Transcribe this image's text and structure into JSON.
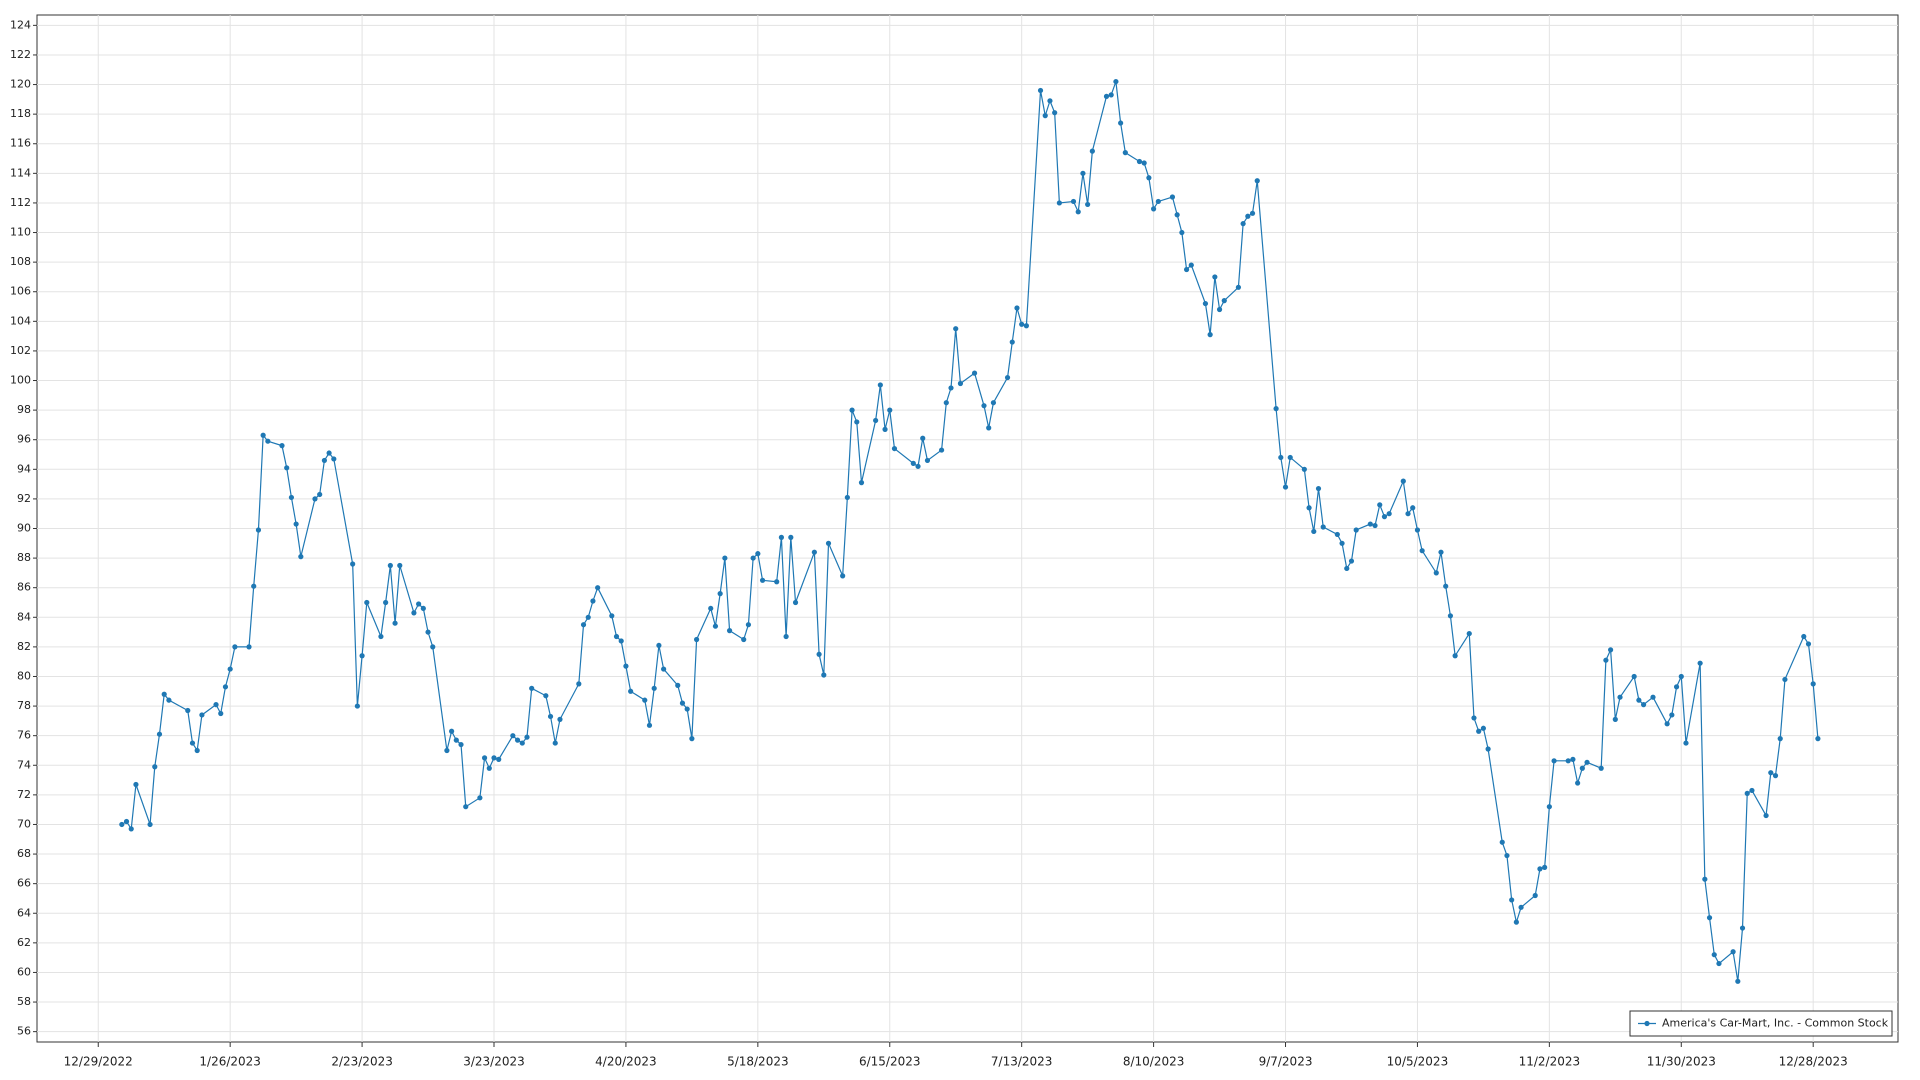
{
  "chart_data": {
    "type": "line",
    "x": [
      "1/3/2023",
      "1/4/2023",
      "1/5/2023",
      "1/6/2023",
      "1/9/2023",
      "1/10/2023",
      "1/11/2023",
      "1/12/2023",
      "1/13/2023",
      "1/17/2023",
      "1/18/2023",
      "1/19/2023",
      "1/20/2023",
      "1/23/2023",
      "1/24/2023",
      "1/25/2023",
      "1/26/2023",
      "1/27/2023",
      "1/30/2023",
      "1/31/2023",
      "2/1/2023",
      "2/2/2023",
      "2/3/2023",
      "2/6/2023",
      "2/7/2023",
      "2/8/2023",
      "2/9/2023",
      "2/10/2023",
      "2/13/2023",
      "2/14/2023",
      "2/15/2023",
      "2/16/2023",
      "2/17/2023",
      "2/21/2023",
      "2/22/2023",
      "2/23/2023",
      "2/24/2023",
      "2/27/2023",
      "2/28/2023",
      "3/1/2023",
      "3/2/2023",
      "3/3/2023",
      "3/6/2023",
      "3/7/2023",
      "3/8/2023",
      "3/9/2023",
      "3/10/2023",
      "3/13/2023",
      "3/14/2023",
      "3/15/2023",
      "3/16/2023",
      "3/17/2023",
      "3/20/2023",
      "3/21/2023",
      "3/22/2023",
      "3/23/2023",
      "3/24/2023",
      "3/27/2023",
      "3/28/2023",
      "3/29/2023",
      "3/30/2023",
      "3/31/2023",
      "4/3/2023",
      "4/4/2023",
      "4/5/2023",
      "4/6/2023",
      "4/10/2023",
      "4/11/2023",
      "4/12/2023",
      "4/13/2023",
      "4/14/2023",
      "4/17/2023",
      "4/18/2023",
      "4/19/2023",
      "4/20/2023",
      "4/21/2023",
      "4/24/2023",
      "4/25/2023",
      "4/26/2023",
      "4/27/2023",
      "4/28/2023",
      "5/1/2023",
      "5/2/2023",
      "5/3/2023",
      "5/4/2023",
      "5/5/2023",
      "5/8/2023",
      "5/9/2023",
      "5/10/2023",
      "5/11/2023",
      "5/12/2023",
      "5/15/2023",
      "5/16/2023",
      "5/17/2023",
      "5/18/2023",
      "5/19/2023",
      "5/22/2023",
      "5/23/2023",
      "5/24/2023",
      "5/25/2023",
      "5/26/2023",
      "5/30/2023",
      "5/31/2023",
      "6/1/2023",
      "6/2/2023",
      "6/5/2023",
      "6/6/2023",
      "6/7/2023",
      "6/8/2023",
      "6/9/2023",
      "6/12/2023",
      "6/13/2023",
      "6/14/2023",
      "6/15/2023",
      "6/16/2023",
      "6/20/2023",
      "6/21/2023",
      "6/22/2023",
      "6/23/2023",
      "6/26/2023",
      "6/27/2023",
      "6/28/2023",
      "6/29/2023",
      "6/30/2023",
      "7/3/2023",
      "7/5/2023",
      "7/6/2023",
      "7/7/2023",
      "7/10/2023",
      "7/11/2023",
      "7/12/2023",
      "7/13/2023",
      "7/14/2023",
      "7/17/2023",
      "7/18/2023",
      "7/19/2023",
      "7/20/2023",
      "7/21/2023",
      "7/24/2023",
      "7/25/2023",
      "7/26/2023",
      "7/27/2023",
      "7/28/2023",
      "7/31/2023",
      "8/1/2023",
      "8/2/2023",
      "8/3/2023",
      "8/4/2023",
      "8/7/2023",
      "8/8/2023",
      "8/9/2023",
      "8/10/2023",
      "8/11/2023",
      "8/14/2023",
      "8/15/2023",
      "8/16/2023",
      "8/17/2023",
      "8/18/2023",
      "8/21/2023",
      "8/22/2023",
      "8/23/2023",
      "8/24/2023",
      "8/25/2023",
      "8/28/2023",
      "8/29/2023",
      "8/30/2023",
      "8/31/2023",
      "9/1/2023",
      "9/5/2023",
      "9/6/2023",
      "9/7/2023",
      "9/8/2023",
      "9/11/2023",
      "9/12/2023",
      "9/13/2023",
      "9/14/2023",
      "9/15/2023",
      "9/18/2023",
      "9/19/2023",
      "9/20/2023",
      "9/21/2023",
      "9/22/2023",
      "9/25/2023",
      "9/26/2023",
      "9/27/2023",
      "9/28/2023",
      "9/29/2023",
      "10/2/2023",
      "10/3/2023",
      "10/4/2023",
      "10/5/2023",
      "10/6/2023",
      "10/9/2023",
      "10/10/2023",
      "10/11/2023",
      "10/12/2023",
      "10/13/2023",
      "10/16/2023",
      "10/17/2023",
      "10/18/2023",
      "10/19/2023",
      "10/20/2023",
      "10/23/2023",
      "10/24/2023",
      "10/25/2023",
      "10/26/2023",
      "10/27/2023",
      "10/30/2023",
      "10/31/2023",
      "11/1/2023",
      "11/2/2023",
      "11/3/2023",
      "11/6/2023",
      "11/7/2023",
      "11/8/2023",
      "11/9/2023",
      "11/10/2023",
      "11/13/2023",
      "11/14/2023",
      "11/15/2023",
      "11/16/2023",
      "11/17/2023",
      "11/20/2023",
      "11/21/2023",
      "11/22/2023",
      "11/24/2023",
      "11/27/2023",
      "11/28/2023",
      "11/29/2023",
      "11/30/2023",
      "12/1/2023",
      "12/4/2023",
      "12/5/2023",
      "12/6/2023",
      "12/7/2023",
      "12/8/2023",
      "12/11/2023",
      "12/12/2023",
      "12/13/2023",
      "12/14/2023",
      "12/15/2023",
      "12/18/2023",
      "12/19/2023",
      "12/20/2023",
      "12/21/2023",
      "12/22/2023",
      "12/26/2023",
      "12/27/2023",
      "12/28/2023",
      "12/29/2023"
    ],
    "series": [
      {
        "name": "America's Car-Mart, Inc. - Common Stock",
        "color": "#1f78b4",
        "values": [
          70.0,
          70.2,
          69.7,
          72.7,
          70.0,
          73.9,
          76.1,
          78.8,
          78.4,
          77.7,
          75.5,
          75.0,
          77.4,
          78.1,
          77.5,
          79.3,
          80.5,
          82.0,
          82.0,
          86.1,
          89.9,
          96.3,
          95.9,
          95.6,
          94.1,
          92.1,
          90.3,
          88.1,
          92.0,
          92.3,
          94.6,
          95.1,
          94.7,
          87.6,
          78.0,
          81.4,
          85.0,
          82.7,
          85.0,
          87.5,
          83.6,
          87.5,
          84.3,
          84.9,
          84.6,
          83.0,
          82.0,
          75.0,
          76.3,
          75.7,
          75.4,
          71.2,
          71.8,
          74.5,
          73.8,
          74.5,
          74.4,
          76.0,
          75.7,
          75.5,
          75.9,
          79.2,
          78.7,
          77.3,
          75.5,
          77.1,
          79.5,
          83.5,
          84.0,
          85.1,
          86.0,
          84.1,
          82.7,
          82.4,
          80.7,
          79.0,
          78.4,
          76.7,
          79.2,
          82.1,
          80.5,
          79.4,
          78.2,
          77.8,
          75.8,
          82.5,
          84.6,
          83.4,
          85.6,
          88.0,
          83.1,
          82.5,
          83.5,
          88.0,
          88.3,
          86.5,
          86.4,
          89.4,
          82.7,
          89.4,
          85.0,
          88.4,
          81.5,
          80.1,
          89.0,
          86.8,
          92.1,
          98.0,
          97.2,
          93.1,
          97.3,
          99.7,
          96.7,
          98.0,
          95.4,
          94.4,
          94.2,
          96.1,
          94.6,
          95.3,
          98.5,
          99.5,
          103.5,
          99.8,
          100.5,
          98.3,
          96.8,
          98.5,
          100.2,
          102.6,
          104.9,
          103.8,
          103.7,
          119.6,
          117.9,
          118.9,
          118.1,
          112.0,
          112.1,
          111.4,
          114.0,
          111.9,
          115.5,
          119.2,
          119.3,
          120.2,
          117.4,
          115.4,
          114.8,
          114.7,
          113.7,
          111.6,
          112.1,
          112.4,
          111.2,
          110.0,
          107.5,
          107.8,
          105.2,
          103.1,
          107.0,
          104.8,
          105.4,
          106.3,
          110.6,
          111.1,
          111.3,
          113.5,
          98.1,
          94.8,
          92.8,
          94.8,
          94.0,
          91.4,
          89.8,
          92.7,
          90.1,
          89.6,
          89.0,
          87.3,
          87.8,
          89.9,
          90.3,
          90.2,
          91.6,
          90.8,
          91.0,
          93.2,
          91.0,
          91.4,
          89.9,
          88.5,
          87.0,
          88.4,
          86.1,
          84.1,
          81.4,
          82.9,
          77.2,
          76.3,
          76.5,
          75.1,
          68.8,
          67.9,
          64.9,
          63.4,
          64.4,
          65.2,
          67.0,
          67.1,
          71.2,
          74.3,
          74.3,
          74.4,
          72.8,
          73.8,
          74.2,
          73.8,
          81.1,
          81.8,
          77.1,
          78.6,
          80.0,
          78.4,
          78.1,
          78.6,
          76.8,
          77.4,
          79.3,
          80.0,
          75.5,
          80.9,
          66.3,
          63.7,
          61.2,
          60.6,
          61.4,
          59.4,
          63.0,
          72.1,
          72.3,
          70.6,
          73.5,
          73.3,
          75.8,
          79.8,
          82.7,
          82.2,
          79.5,
          75.8
        ]
      }
    ],
    "xlim": [
      "12/16/2022",
      "1/15/2024"
    ],
    "xticks": [
      "12/29/2022",
      "1/26/2023",
      "2/23/2023",
      "3/23/2023",
      "4/20/2023",
      "5/18/2023",
      "6/15/2023",
      "7/13/2023",
      "8/10/2023",
      "9/7/2023",
      "10/5/2023",
      "11/2/2023",
      "11/30/2023",
      "12/28/2023"
    ],
    "ylim": [
      55.3,
      124.7
    ],
    "yticks": [
      56,
      58,
      60,
      62,
      64,
      66,
      68,
      70,
      72,
      74,
      76,
      78,
      80,
      82,
      84,
      86,
      88,
      90,
      92,
      94,
      96,
      98,
      100,
      102,
      104,
      106,
      108,
      110,
      112,
      114,
      116,
      118,
      120,
      122,
      124
    ],
    "grid": true,
    "legend": "bottom-right"
  }
}
